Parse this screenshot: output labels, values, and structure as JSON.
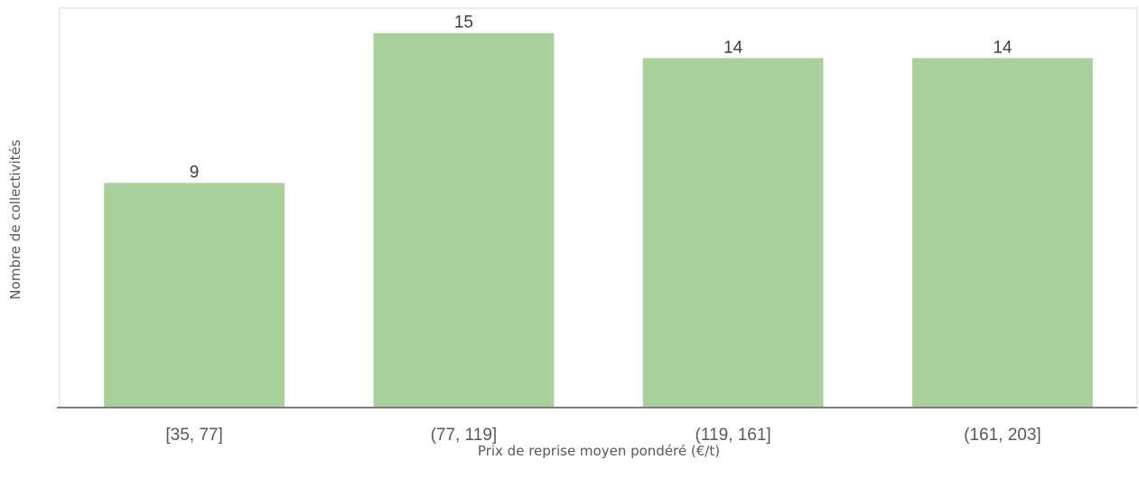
{
  "chart_data": {
    "type": "bar",
    "categories": [
      "[35, 77]",
      "(77, 119]",
      "(119, 161]",
      "(161, 203]"
    ],
    "values": [
      9,
      15,
      14,
      14
    ],
    "title": "",
    "xlabel": "Prix de reprise moyen pondéré (€/t)",
    "ylabel": "Nombre de collectivités",
    "ylim": [
      0,
      16
    ],
    "grid": false,
    "legend": "none",
    "bar_color": "#a9d09a",
    "axis_color": "#7f7f7f",
    "label_color": "#595959"
  }
}
